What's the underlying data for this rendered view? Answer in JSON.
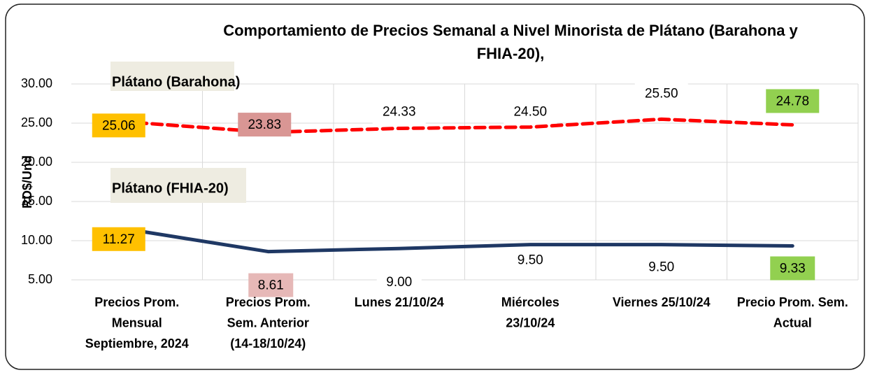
{
  "chart_data": {
    "type": "line",
    "title": [
      "Comportamiento de Precios Semanal a Nivel Minorista de Plátano (Barahona y",
      "FHIA-20),"
    ],
    "y_label": "RD$/Und",
    "categories": [
      "Precios Prom.\nMensual\nSeptiembre, 2024",
      "Precios Prom.\nSem. Anterior\n(14-18/10/24)",
      "Lunes  21/10/24",
      "Miércoles\n23/10/24",
      "Viernes 25/10/24",
      "Precio Prom. Sem.\nActual"
    ],
    "series": [
      {
        "name": "Plátano (Barahona)",
        "color": "#ff0000",
        "dashed": true,
        "values": [
          25.06,
          23.83,
          24.33,
          24.5,
          25.5,
          24.78
        ],
        "value_labels": [
          "25.06",
          "23.83",
          "24.33",
          "24.50",
          "25.50",
          "24.78"
        ],
        "label_colors": [
          "#ffc000",
          "#d99694",
          "#ffffff",
          "#ffffff",
          "#ffffff",
          "#92d050"
        ]
      },
      {
        "name": "Plátano (FHIA-20)",
        "color": "#1f3864",
        "dashed": false,
        "values": [
          11.27,
          8.61,
          9.0,
          9.5,
          9.5,
          9.33
        ],
        "value_labels": [
          "11.27",
          "8.61",
          "9.00",
          "9.50",
          "9.50",
          "9.33"
        ],
        "label_colors": [
          "#ffc000",
          "#e6b8b7",
          "#ffffff",
          "#ffffff",
          "#ffffff",
          "#92d050"
        ]
      }
    ],
    "ylim": [
      5,
      30
    ],
    "yticks": [
      {
        "value": 5,
        "label": "5.00"
      },
      {
        "value": 10,
        "label": "10.00"
      },
      {
        "value": 15,
        "label": "15.00"
      },
      {
        "value": 20,
        "label": "20.00"
      },
      {
        "value": 25,
        "label": "25.00"
      },
      {
        "value": 30,
        "label": "30.00"
      }
    ],
    "grid": true
  }
}
